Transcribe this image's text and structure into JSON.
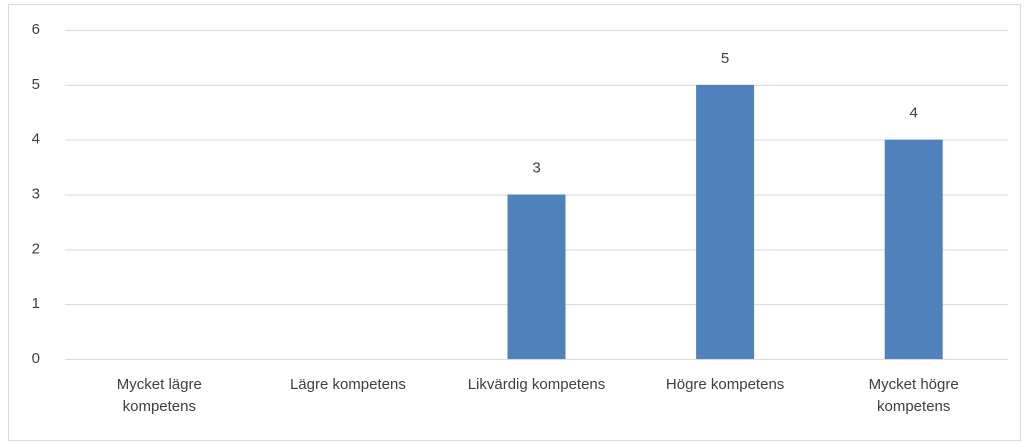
{
  "chart_data": {
    "type": "bar",
    "categories": [
      "Mycket lägre kompetens",
      "Lägre kompetens",
      "Likvärdig kompetens",
      "Högre kompetens",
      "Mycket högre kompetens"
    ],
    "values": [
      0,
      0,
      3,
      5,
      4
    ],
    "color": "#4f81bd",
    "ylim": [
      0,
      6
    ],
    "yticks": [
      0,
      1,
      2,
      3,
      4,
      5,
      6
    ],
    "grid": true
  }
}
